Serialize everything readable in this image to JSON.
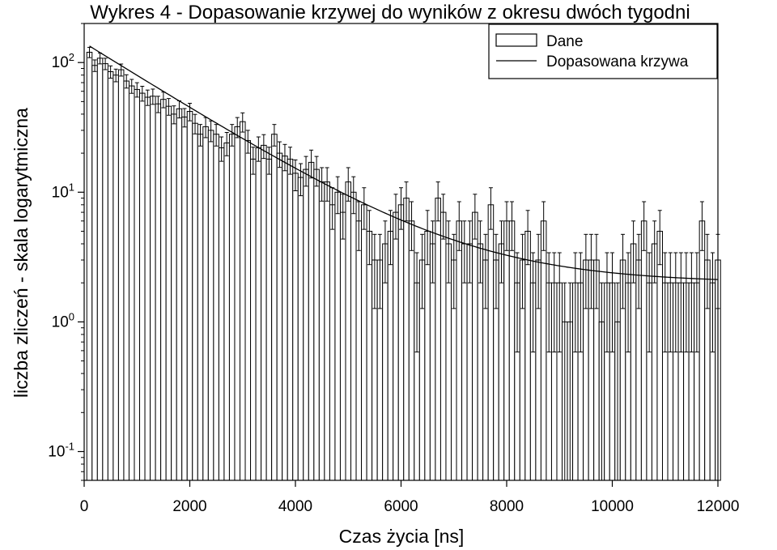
{
  "chart_data": {
    "type": "bar",
    "title": "Wykres 4 - Dopasowanie krzywej do wyników z okresu dwóch tygodni",
    "xlabel": "Czas życia [ns]",
    "ylabel": "liczba zliczeń - skala logarytmiczna",
    "xlim": [
      0,
      12000
    ],
    "xticks": [
      0,
      2000,
      4000,
      6000,
      8000,
      10000,
      12000
    ],
    "xtick_labels": [
      "0",
      "2000",
      "4000",
      "6000",
      "8000",
      "10000",
      "12000"
    ],
    "yscale": "log",
    "ylim": [
      0.06,
      200
    ],
    "yticks": [
      {
        "value": 0.1,
        "base": "10",
        "exp": "-1"
      },
      {
        "value": 1,
        "base": "10",
        "exp": "0"
      },
      {
        "value": 10,
        "base": "10",
        "exp": "1"
      },
      {
        "value": 100,
        "base": "10",
        "exp": "2"
      }
    ],
    "grid": false,
    "legend_position": "top-right",
    "bin_width": 100,
    "bin_start": 100,
    "series": [
      {
        "name": "Dane",
        "kind": "bar",
        "values": [
          120,
          95,
          108,
          98,
          85,
          80,
          88,
          72,
          66,
          62,
          58,
          54,
          55,
          48,
          52,
          46,
          40,
          44,
          38,
          42,
          34,
          28,
          32,
          30,
          28,
          22,
          24,
          28,
          32,
          35,
          25,
          18,
          22,
          23,
          18,
          28,
          20,
          19,
          18,
          14,
          13,
          15,
          17,
          15,
          12,
          12,
          8,
          10,
          7,
          12,
          10,
          6,
          8,
          5,
          3,
          3,
          4,
          5,
          7,
          8,
          9,
          6,
          2,
          3,
          5,
          4,
          9,
          7,
          4,
          3,
          6,
          4,
          4,
          7,
          4,
          3,
          8,
          3,
          4,
          6,
          6,
          2,
          3,
          5,
          2,
          3,
          6,
          2,
          2,
          2,
          1,
          1,
          2,
          2,
          3,
          3,
          3,
          1,
          2,
          2,
          1,
          3,
          2,
          4,
          3,
          6,
          2,
          4,
          5,
          2,
          2,
          2,
          2,
          2,
          2,
          2,
          6,
          3,
          2,
          3
        ]
      },
      {
        "name": "Dopasowana krzywa",
        "kind": "line",
        "model": {
          "amplitude": 140,
          "decay_ns": 1700,
          "offset": 2.0
        }
      }
    ]
  }
}
